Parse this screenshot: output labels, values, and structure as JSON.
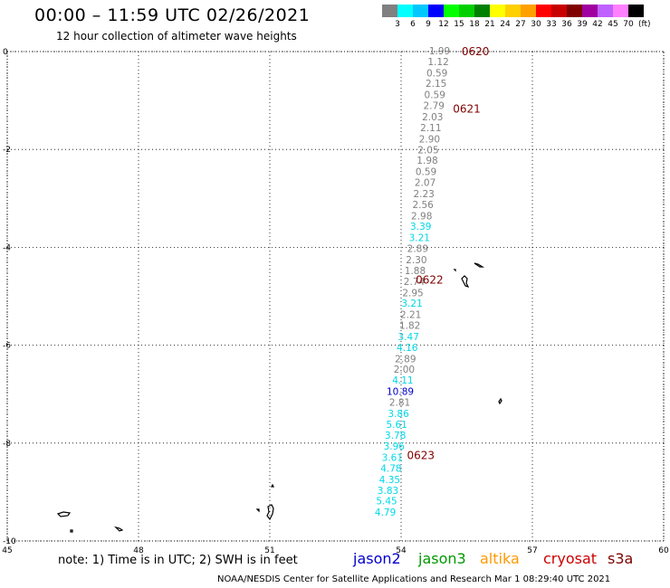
{
  "header": {
    "title": "00:00 – 11:59 UTC 02/26/2021",
    "subtitle": "12 hour collection of altimeter wave heights"
  },
  "colorbar": {
    "colors": [
      "#808080",
      "#00ffff",
      "#00c8ff",
      "#0000ff",
      "#00ff00",
      "#00d000",
      "#008000",
      "#ffff00",
      "#ffd000",
      "#ffa000",
      "#ff0000",
      "#c80000",
      "#800000",
      "#a000a0",
      "#c060ff",
      "#ff80ff",
      "#000000"
    ],
    "labels": [
      "3",
      "6",
      "9",
      "12",
      "15",
      "18",
      "21",
      "24",
      "27",
      "30",
      "33",
      "36",
      "39",
      "42",
      "45",
      "70"
    ],
    "unit": "(ft)"
  },
  "chart_data": {
    "type": "map",
    "xlim": [
      45,
      60
    ],
    "ylim": [
      -10,
      0
    ],
    "x_ticks": [
      "45",
      "48",
      "51",
      "54",
      "57",
      "60"
    ],
    "y_ticks": [
      "0",
      "-2",
      "-4",
      "-6",
      "-8",
      "-10"
    ],
    "time_labels": [
      {
        "text": "0620",
        "lon": 55.7,
        "lat": 0.0
      },
      {
        "text": "0621",
        "lon": 55.5,
        "lat": -1.17
      },
      {
        "text": "0622",
        "lon": 54.65,
        "lat": -4.67
      },
      {
        "text": "0623",
        "lon": 54.45,
        "lat": -8.25
      }
    ],
    "observations": [
      {
        "v": "1.99",
        "lon": 54.88,
        "lat": 0.0,
        "sat": "gray"
      },
      {
        "v": "1.12",
        "lon": 54.85,
        "lat": -0.22,
        "sat": "gray"
      },
      {
        "v": "0.59",
        "lon": 54.82,
        "lat": -0.45,
        "sat": "gray"
      },
      {
        "v": "2.15",
        "lon": 54.8,
        "lat": -0.67,
        "sat": "gray"
      },
      {
        "v": "0.59",
        "lon": 54.77,
        "lat": -0.9,
        "sat": "gray"
      },
      {
        "v": "2.79",
        "lon": 54.75,
        "lat": -1.12,
        "sat": "gray"
      },
      {
        "v": "2.03",
        "lon": 54.72,
        "lat": -1.35,
        "sat": "gray"
      },
      {
        "v": "2.11",
        "lon": 54.68,
        "lat": -1.57,
        "sat": "gray"
      },
      {
        "v": "2.90",
        "lon": 54.65,
        "lat": -1.8,
        "sat": "gray"
      },
      {
        "v": "2.05",
        "lon": 54.62,
        "lat": -2.02,
        "sat": "gray"
      },
      {
        "v": "1.98",
        "lon": 54.6,
        "lat": -2.24,
        "sat": "gray"
      },
      {
        "v": "0.59",
        "lon": 54.57,
        "lat": -2.47,
        "sat": "gray"
      },
      {
        "v": "2.07",
        "lon": 54.55,
        "lat": -2.69,
        "sat": "gray"
      },
      {
        "v": "2.23",
        "lon": 54.52,
        "lat": -2.92,
        "sat": "gray"
      },
      {
        "v": "2.56",
        "lon": 54.5,
        "lat": -3.14,
        "sat": "gray"
      },
      {
        "v": "2.98",
        "lon": 54.47,
        "lat": -3.37,
        "sat": "gray"
      },
      {
        "v": "3.39",
        "lon": 54.45,
        "lat": -3.59,
        "sat": "cyan"
      },
      {
        "v": "3.21",
        "lon": 54.42,
        "lat": -3.82,
        "sat": "cyan"
      },
      {
        "v": "2.89",
        "lon": 54.38,
        "lat": -4.04,
        "sat": "gray"
      },
      {
        "v": "2.30",
        "lon": 54.35,
        "lat": -4.27,
        "sat": "gray"
      },
      {
        "v": "1.88",
        "lon": 54.32,
        "lat": -4.49,
        "sat": "gray"
      },
      {
        "v": "2.74",
        "lon": 54.3,
        "lat": -4.71,
        "sat": "gray"
      },
      {
        "v": "2.95",
        "lon": 54.27,
        "lat": -4.94,
        "sat": "gray"
      },
      {
        "v": "3.21",
        "lon": 54.25,
        "lat": -5.16,
        "sat": "cyan"
      },
      {
        "v": "2.21",
        "lon": 54.22,
        "lat": -5.39,
        "sat": "gray"
      },
      {
        "v": "1.82",
        "lon": 54.2,
        "lat": -5.61,
        "sat": "gray"
      },
      {
        "v": "3.47",
        "lon": 54.17,
        "lat": -5.84,
        "sat": "cyan"
      },
      {
        "v": "4.16",
        "lon": 54.14,
        "lat": -6.06,
        "sat": "cyan"
      },
      {
        "v": "2.89",
        "lon": 54.1,
        "lat": -6.29,
        "sat": "gray"
      },
      {
        "v": "2.00",
        "lon": 54.07,
        "lat": -6.51,
        "sat": "gray"
      },
      {
        "v": "4.11",
        "lon": 54.04,
        "lat": -6.73,
        "sat": "cyan"
      },
      {
        "v": "10.89",
        "lon": 53.98,
        "lat": -6.96,
        "sat": "blue"
      },
      {
        "v": "2.81",
        "lon": 53.97,
        "lat": -7.18,
        "sat": "gray"
      },
      {
        "v": "3.86",
        "lon": 53.94,
        "lat": -7.41,
        "sat": "cyan"
      },
      {
        "v": "5.61",
        "lon": 53.9,
        "lat": -7.63,
        "sat": "cyan"
      },
      {
        "v": "3.78",
        "lon": 53.87,
        "lat": -7.86,
        "sat": "cyan"
      },
      {
        "v": "3.96",
        "lon": 53.84,
        "lat": -8.08,
        "sat": "cyan"
      },
      {
        "v": "3.61",
        "lon": 53.8,
        "lat": -8.31,
        "sat": "cyan"
      },
      {
        "v": "4.78",
        "lon": 53.77,
        "lat": -8.53,
        "sat": "cyan"
      },
      {
        "v": "4.35",
        "lon": 53.74,
        "lat": -8.76,
        "sat": "cyan"
      },
      {
        "v": "3.83",
        "lon": 53.7,
        "lat": -8.98,
        "sat": "cyan"
      },
      {
        "v": "5.45",
        "lon": 53.67,
        "lat": -9.2,
        "sat": "cyan"
      },
      {
        "v": "4.79",
        "lon": 53.64,
        "lat": -9.43,
        "sat": "cyan"
      }
    ],
    "grid": "dotted"
  },
  "footer": {
    "note": "note: 1) Time is in UTC; 2) SWH is in feet",
    "satellites": [
      {
        "name": "jason2",
        "color": "#0000cc"
      },
      {
        "name": "jason3",
        "color": "#009900"
      },
      {
        "name": "altika",
        "color": "#ff9900"
      },
      {
        "name": "cryosat",
        "color": "#cc0000"
      },
      {
        "name": "s3a",
        "color": "#800000"
      }
    ],
    "credit": "NOAA/NESDIS Center for Satellite Applications and Research    Mar  1 08:29:40 UTC 2021"
  },
  "colors": {
    "gray": "#808080",
    "cyan": "#00d8e8",
    "blue": "#0000cc",
    "time": "#800000"
  }
}
